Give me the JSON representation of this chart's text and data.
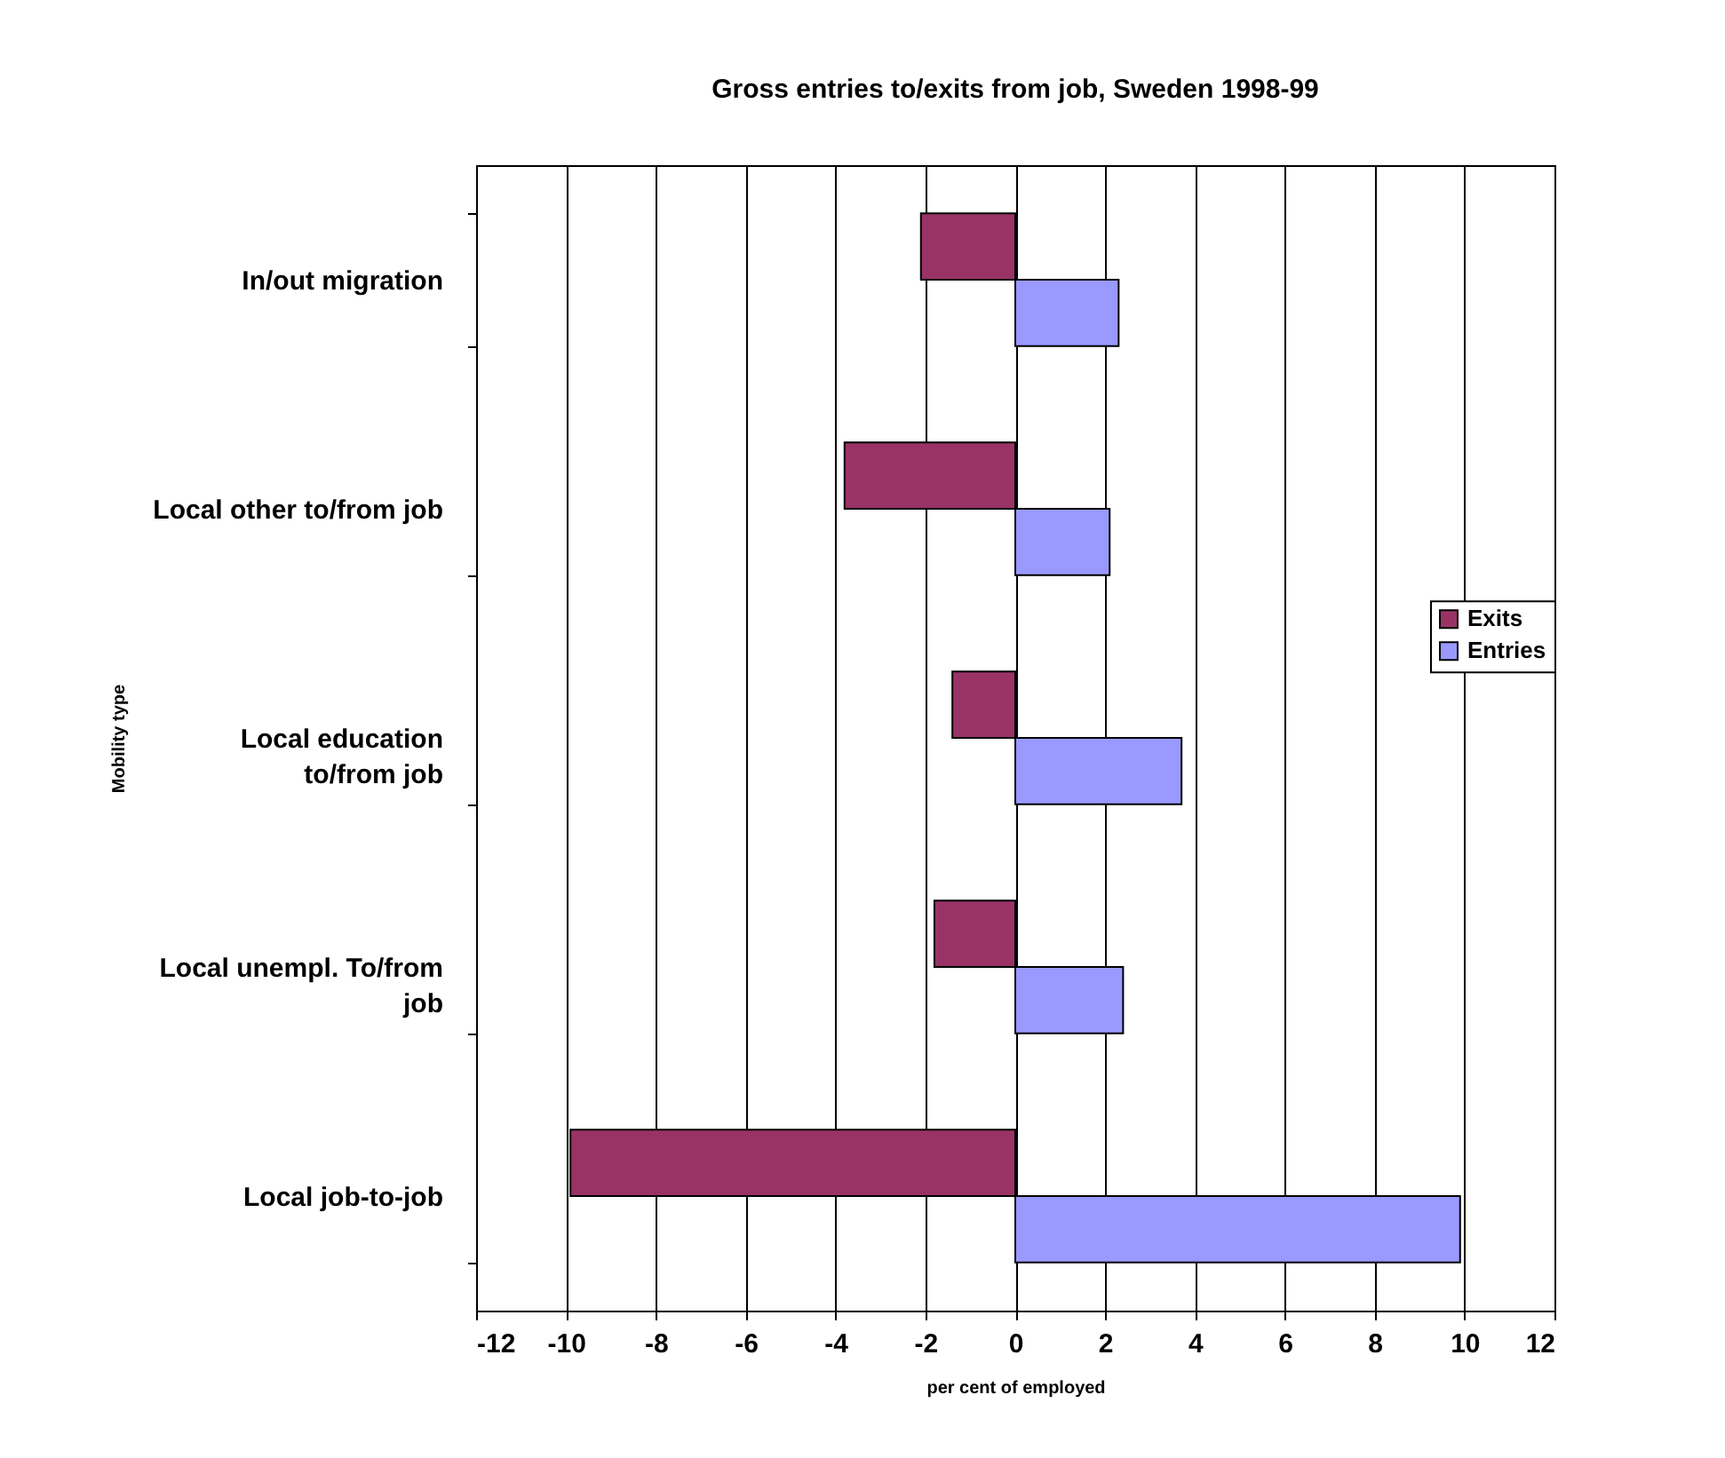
{
  "chart_data": {
    "type": "bar",
    "orientation": "horizontal",
    "title": "Gross entries to/exits from job, Sweden 1998-99",
    "xlabel": "per cent of employed",
    "ylabel": "Mobility type",
    "categories": [
      "In/out migration",
      "Local other to/from job",
      "Local education\nto/from job",
      "Local unempl. To/from\njob",
      "Local job-to-job"
    ],
    "series": [
      {
        "name": "Exits",
        "color": "#993366",
        "values": [
          -2.1,
          -3.8,
          -1.4,
          -1.8,
          -9.9
        ]
      },
      {
        "name": "Entries",
        "color": "#9999ff",
        "values": [
          2.3,
          2.1,
          3.7,
          2.4,
          9.9
        ]
      }
    ],
    "xlim": [
      -12,
      12
    ],
    "xticks": [
      -12,
      -10,
      -8,
      -6,
      -4,
      -2,
      0,
      2,
      4,
      6,
      8,
      10,
      12
    ],
    "grid": "x",
    "legend": "right"
  }
}
